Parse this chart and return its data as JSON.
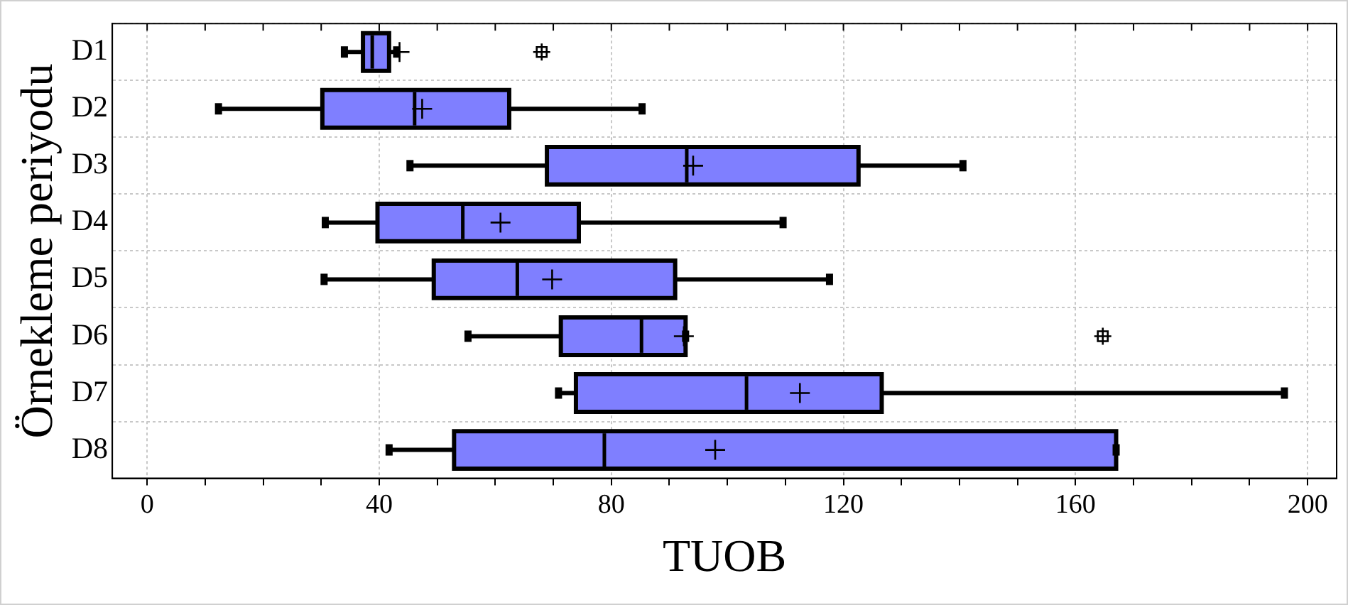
{
  "chart_data": {
    "type": "box",
    "orientation": "horizontal",
    "xlabel": "TUOB",
    "ylabel": "Örnekleme periyodu",
    "categories": [
      "D1",
      "D2",
      "D3",
      "D4",
      "D5",
      "D6",
      "D7",
      "D8"
    ],
    "color": "#7f7fff",
    "boxes": [
      {
        "low": 34,
        "q1": 37.2,
        "median": 38.8,
        "q3": 41.7,
        "high": 43,
        "mean": 43.5,
        "outliers": [
          68
        ]
      },
      {
        "low": 12.3,
        "q1": 30.2,
        "median": 46.1,
        "q3": 62.4,
        "high": 85.3,
        "mean": 47.4
      },
      {
        "low": 45.3,
        "q1": 68.9,
        "median": 93,
        "q3": 122.6,
        "high": 140.6,
        "mean": 94.1
      },
      {
        "low": 30.7,
        "q1": 39.7,
        "median": 54.4,
        "q3": 74.4,
        "high": 109.6,
        "mean": 60.9
      },
      {
        "low": 30.5,
        "q1": 49.4,
        "median": 63.8,
        "q3": 91,
        "high": 117.6,
        "mean": 69.8
      },
      {
        "low": 55.3,
        "q1": 71.3,
        "median": 85.2,
        "q3": 92.8,
        "high": 92.8,
        "mean": 92.5,
        "outliers": [
          164.7
        ]
      },
      {
        "low": 70.9,
        "q1": 73.9,
        "median": 103.3,
        "q3": 126.6,
        "high": 196,
        "mean": 112.5
      },
      {
        "low": 41.7,
        "q1": 52.9,
        "median": 78.8,
        "q3": 167,
        "high": 167,
        "mean": 97.9
      }
    ],
    "xlim": [
      -6,
      205
    ],
    "xticks": [
      0,
      {
        "value": 10,
        "label": null
      },
      {
        "value": 20,
        "label": null
      },
      {
        "value": 30,
        "label": null
      },
      40,
      {
        "value": 50,
        "label": null
      },
      {
        "value": 60,
        "label": null
      },
      {
        "value": 70,
        "label": null
      },
      80,
      {
        "value": 90,
        "label": null
      },
      {
        "value": 100,
        "label": null
      },
      {
        "value": 110,
        "label": null
      },
      120,
      {
        "value": 130,
        "label": null
      },
      {
        "value": 140,
        "label": null
      },
      {
        "value": 150,
        "label": null
      },
      160,
      {
        "value": 170,
        "label": null
      },
      {
        "value": 180,
        "label": null
      },
      {
        "value": 190,
        "label": null
      },
      200
    ],
    "grid": true,
    "legend": false
  }
}
